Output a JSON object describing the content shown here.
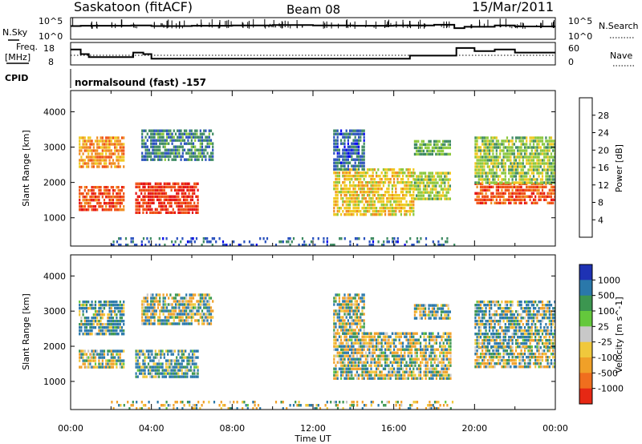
{
  "header": {
    "station": "Saskatoon (fitACF)",
    "beam": "Beam 08",
    "date": "15/Mar/2011"
  },
  "noise_panel": {
    "left_label": "N.Sky",
    "right_label": "N.Search",
    "left_ticks": [
      "10^5",
      "10^0"
    ],
    "right_ticks": [
      "10^5",
      "10^0"
    ]
  },
  "freq_panel": {
    "left_label_1": "Freq.",
    "left_label_2": "[MHz]",
    "right_label": "Nave",
    "left_ticks": [
      "18",
      "8"
    ],
    "right_ticks": [
      "60",
      "0"
    ]
  },
  "cpid": {
    "label": "CPID",
    "program": "normalsound (fast) -157"
  },
  "axes": {
    "ylabel": "Slant Range [km]",
    "xlabel": "Time UT",
    "y_ticks": [
      "1000",
      "2000",
      "3000",
      "4000"
    ],
    "x_ticks": [
      "00:00",
      "04:00",
      "08:00",
      "12:00",
      "16:00",
      "20:00",
      "00:00"
    ]
  },
  "power_scale": {
    "label": "Power [dB]",
    "ticks": [
      "4",
      "8",
      "12",
      "16",
      "20",
      "24",
      "28"
    ],
    "colors": [
      "#0000f0",
      "#2a52be",
      "#3e8a62",
      "#8cc83c",
      "#f0c81e",
      "#f08c1e",
      "#f05014",
      "#e61414"
    ]
  },
  "velocity_scale": {
    "label": "Velocity [m s^-1]",
    "ticks": [
      "1000",
      "500",
      "100",
      "25",
      "-25",
      "-100",
      "-500",
      "-1000"
    ],
    "colors": [
      "#1e32b4",
      "#2a78aa",
      "#3c9650",
      "#64c83c",
      "#c8c8c8",
      "#f0c83c",
      "#f0a028",
      "#f06e1e",
      "#e62814"
    ]
  },
  "chart_data": [
    {
      "type": "line",
      "title": "N.Sky / N.Search",
      "ylim_exponent": [
        0,
        5
      ],
      "x_hours": [
        0,
        0.5,
        2,
        3,
        4,
        6,
        8,
        10,
        12,
        14,
        16,
        18,
        19,
        19.5,
        21,
        22,
        24
      ],
      "series": [
        {
          "name": "N.Sky",
          "values": [
            3.2,
            3.3,
            3.3,
            3.4,
            3.2,
            3.3,
            3.4,
            3.5,
            3.4,
            3.3,
            3.4,
            3.6,
            2.6,
            3.0,
            3.4,
            3.1,
            3.1
          ]
        }
      ]
    },
    {
      "type": "line",
      "title": "Freq. [MHz] / Nave",
      "ylim": [
        8,
        18
      ],
      "x_hours": [
        0,
        0.5,
        0.9,
        2.9,
        3.1,
        3.6,
        4.0,
        6.0,
        8.0,
        12.0,
        14.0,
        16.8,
        18.8,
        19.1,
        20.0,
        21.0,
        22.0,
        24.0
      ],
      "series": [
        {
          "name": "Freq.",
          "values": [
            16,
            13,
            11,
            11,
            14,
            13,
            10,
            10,
            10,
            10,
            10,
            12,
            12,
            17,
            15,
            16,
            14,
            14
          ]
        }
      ]
    },
    {
      "type": "heatmap",
      "title": "Power [dB]",
      "xlim": [
        0,
        24
      ],
      "ylim": [
        200,
        4600
      ],
      "clim": [
        0,
        30
      ],
      "regions": [
        {
          "t0": 0.4,
          "t1": 2.6,
          "r0": 1200,
          "r1": 1900,
          "value": 26
        },
        {
          "t0": 0.4,
          "t1": 2.6,
          "r0": 2400,
          "r1": 3300,
          "value": 22
        },
        {
          "t0": 3.2,
          "t1": 6.3,
          "r0": 1100,
          "r1": 2000,
          "value": 28
        },
        {
          "t0": 3.5,
          "t1": 7.0,
          "r0": 2600,
          "r1": 3500,
          "value": 9
        },
        {
          "t0": 13.0,
          "t1": 17.0,
          "r0": 1100,
          "r1": 2400,
          "value": 18
        },
        {
          "t0": 13.0,
          "t1": 14.5,
          "r0": 2400,
          "r1": 3500,
          "value": 7
        },
        {
          "t0": 17.0,
          "t1": 18.8,
          "r0": 1500,
          "r1": 2300,
          "value": 15
        },
        {
          "t0": 17.0,
          "t1": 18.8,
          "r0": 2800,
          "r1": 3200,
          "value": 12
        },
        {
          "t0": 20.0,
          "t1": 24.0,
          "r0": 1400,
          "r1": 2000,
          "value": 26
        },
        {
          "t0": 20.0,
          "t1": 24.0,
          "r0": 2000,
          "r1": 3300,
          "value": 14
        },
        {
          "t0": 2.0,
          "t1": 19.0,
          "r0": 250,
          "r1": 450,
          "value": 7
        }
      ]
    },
    {
      "type": "heatmap",
      "title": "Velocity [m s^-1]",
      "xlim": [
        0,
        24
      ],
      "ylim": [
        200,
        4600
      ],
      "clim": [
        -1000,
        1000
      ],
      "regions": [
        {
          "t0": 0.4,
          "t1": 2.6,
          "r0": 1400,
          "r1": 1900,
          "value": 0
        },
        {
          "t0": 0.4,
          "t1": 2.6,
          "r0": 2300,
          "r1": 3300,
          "value": 120
        },
        {
          "t0": 3.2,
          "t1": 6.3,
          "r0": 1100,
          "r1": 1900,
          "value": 150
        },
        {
          "t0": 3.5,
          "t1": 7.0,
          "r0": 2600,
          "r1": 3500,
          "value": 0
        },
        {
          "t0": 13.0,
          "t1": 18.8,
          "r0": 1100,
          "r1": 2400,
          "value": 0
        },
        {
          "t0": 13.0,
          "t1": 14.5,
          "r0": 2400,
          "r1": 3500,
          "value": 0
        },
        {
          "t0": 17.0,
          "t1": 18.8,
          "r0": 2800,
          "r1": 3200,
          "value": 60
        },
        {
          "t0": 20.0,
          "t1": 24.0,
          "r0": 1400,
          "r1": 2000,
          "value": 0
        },
        {
          "t0": 20.0,
          "t1": 24.0,
          "r0": 2000,
          "r1": 3300,
          "value": 80
        },
        {
          "t0": 2.0,
          "t1": 19.0,
          "r0": 250,
          "r1": 450,
          "value": -30
        }
      ]
    }
  ]
}
